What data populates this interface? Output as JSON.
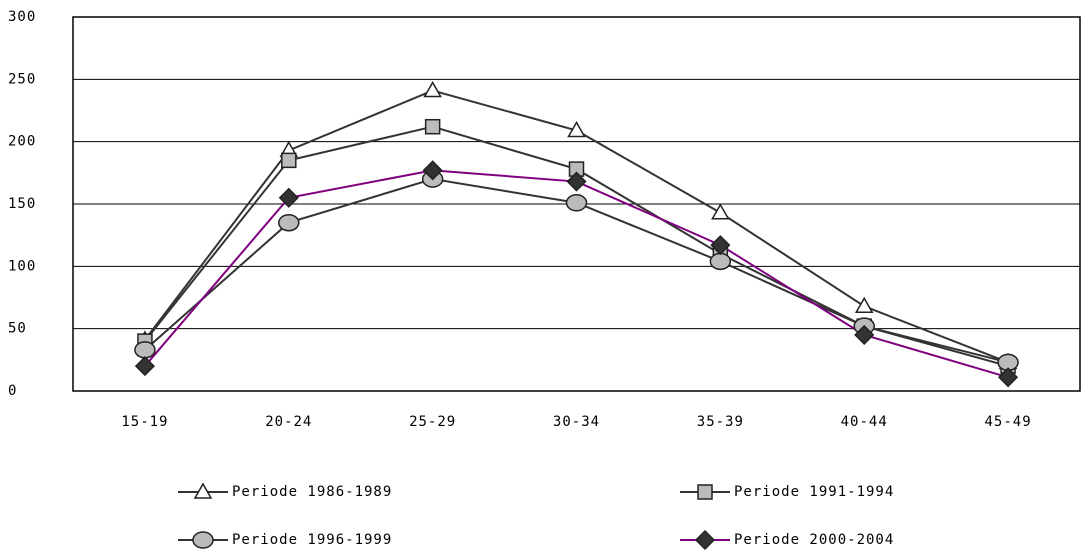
{
  "chart_data": {
    "type": "line",
    "categories": [
      "15-19",
      "20-24",
      "25-29",
      "30-34",
      "35-39",
      "40-44",
      "45-49"
    ],
    "series": [
      {
        "name": "Periode 1986-1989",
        "color": "#333333",
        "marker": "triangle",
        "values": [
          41,
          193,
          241,
          209,
          143,
          68,
          23
        ]
      },
      {
        "name": "Periode 1991-1994",
        "color": "#333333",
        "marker": "square",
        "values": [
          40,
          185,
          212,
          178,
          110,
          52,
          20
        ]
      },
      {
        "name": "Periode 1996-1999",
        "color": "#333333",
        "marker": "circle",
        "values": [
          33,
          135,
          170,
          151,
          104,
          52,
          23
        ]
      },
      {
        "name": "Periode 2000-2004",
        "color": "#800080",
        "marker": "diamond",
        "values": [
          20,
          155,
          177,
          168,
          117,
          45,
          11
        ]
      }
    ],
    "ylim": [
      0,
      300
    ],
    "yticks": [
      0,
      50,
      100,
      150,
      200,
      250,
      300
    ],
    "grid": true
  }
}
